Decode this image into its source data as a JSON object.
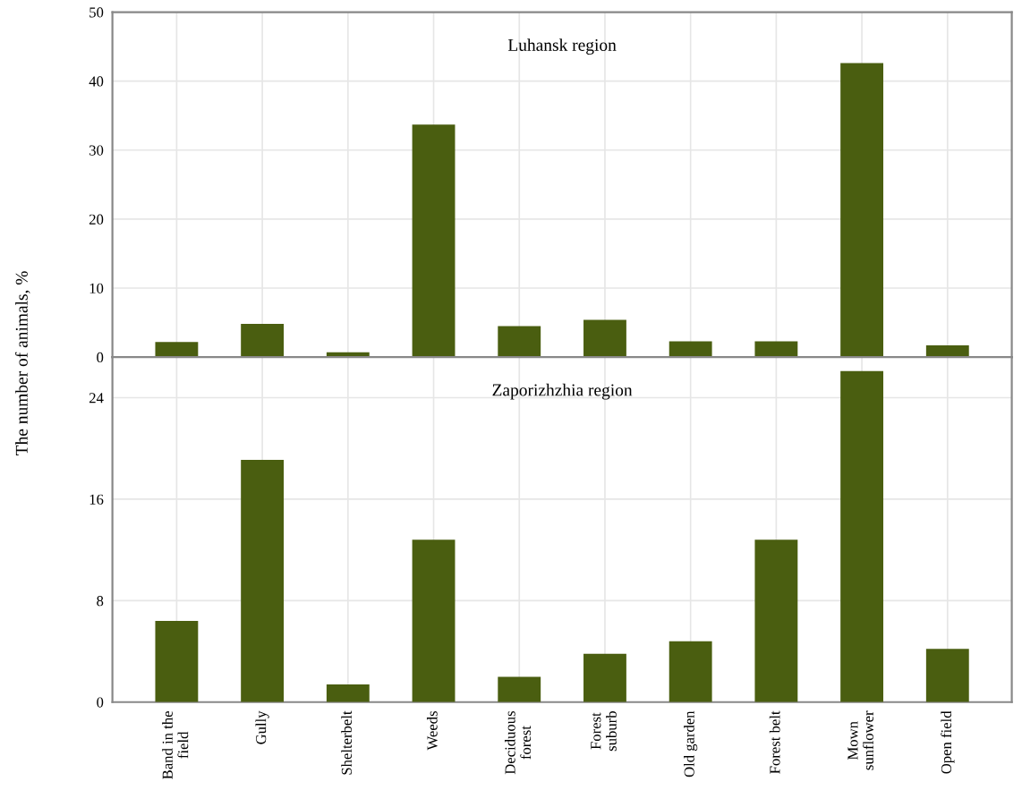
{
  "chart_data": [
    {
      "type": "bar",
      "ylabel": "The number of animals, %",
      "annotations": [
        "Luhansk region"
      ],
      "tick_labels": "y",
      "grid": true,
      "categories": [
        null,
        null,
        null,
        null,
        null,
        null,
        null,
        null,
        null,
        null
      ],
      "series": [
        {
          "color": "#4a5e10",
          "values": [
            2.2,
            4.8,
            0.7,
            33.7,
            4.5,
            5.4,
            2.3,
            2.3,
            42.6,
            1.7
          ]
        }
      ],
      "ylim": [
        0,
        50
      ],
      "yticks": [
        0,
        10,
        20,
        30,
        40,
        50
      ]
    },
    {
      "type": "bar",
      "annotations": [
        "Zaporizhzhia region"
      ],
      "grid": true,
      "categories": [
        "Band in the\nfield",
        "Gully",
        "Shelterbelt",
        "Weeds",
        "Deciduous\nforest",
        "Forest\nsuburb",
        "Old garden",
        "Forest belt",
        "Mown\nsunflower",
        "Open field"
      ],
      "series": [
        {
          "color": "#4a5e10",
          "values": [
            6.4,
            19.1,
            1.4,
            12.8,
            2.0,
            3.8,
            4.8,
            12.8,
            26.1,
            4.2
          ]
        }
      ],
      "ylim": [
        0,
        27.2
      ],
      "yticks": [
        0,
        8,
        16,
        24
      ]
    }
  ]
}
